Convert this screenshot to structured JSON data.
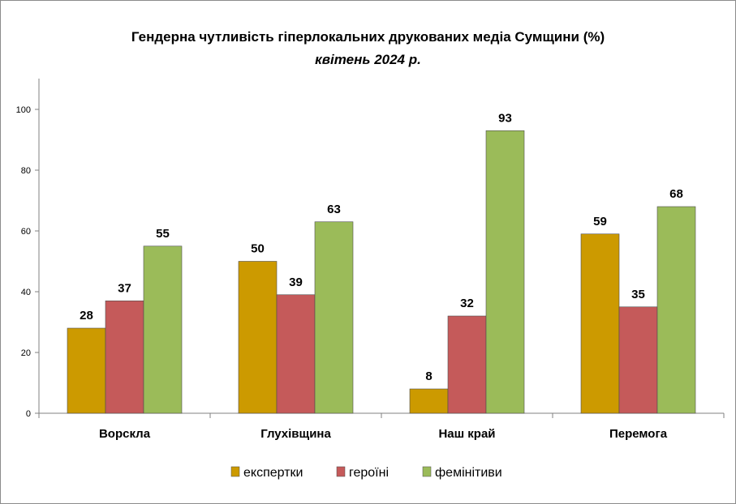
{
  "chart_data": {
    "type": "bar",
    "title": "Гендерна чутливість гіперлокальних друкованих медіа Сумщини (%)",
    "subtitle": "квітень 2024 р.",
    "categories": [
      "Ворскла",
      "Глухівщина",
      "Наш край",
      "Перемога"
    ],
    "series": [
      {
        "name": "експертки",
        "color": "#cc9a00",
        "values": [
          28,
          50,
          8,
          59
        ]
      },
      {
        "name": "героїні",
        "color": "#c55a5a",
        "values": [
          37,
          39,
          32,
          35
        ]
      },
      {
        "name": "фемінітиви",
        "color": "#9bbb59",
        "values": [
          55,
          63,
          93,
          68
        ]
      }
    ],
    "ylim": [
      0,
      100
    ],
    "yticks": [
      0,
      20,
      40,
      60,
      80,
      100
    ],
    "legend_position": "bottom",
    "grid": false
  }
}
